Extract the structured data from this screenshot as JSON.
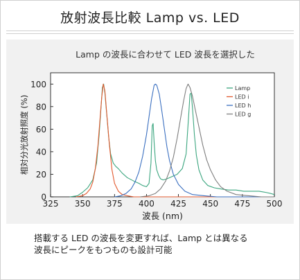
{
  "page": {
    "title": "放射波長比較 Lamp vs. LED",
    "caption_lines": [
      "搭載する LED の波長を変更すれば、Lamp とは異なる",
      "波長にピークをもつものも設計可能"
    ]
  },
  "chart_data": {
    "type": "line",
    "title": "Lamp の波長に合わせて LED 波長を選択した",
    "xlabel": "波長 (nm)",
    "ylabel": "相対分光放射照度 (%)",
    "xlim": [
      325,
      500
    ],
    "ylim": [
      0,
      110
    ],
    "x_ticks": [
      325,
      350,
      375,
      400,
      425,
      450,
      475,
      500
    ],
    "y_ticks": [
      0,
      20,
      40,
      60,
      80,
      100
    ],
    "grid": false,
    "legend_position": "top-right",
    "series": [
      {
        "name": "Lamp",
        "color": "#3aa57e",
        "points": [
          [
            340,
            0
          ],
          [
            346,
            1
          ],
          [
            350,
            4
          ],
          [
            354,
            8
          ],
          [
            358,
            15
          ],
          [
            361,
            30
          ],
          [
            363,
            55
          ],
          [
            364.5,
            80
          ],
          [
            365.5,
            97
          ],
          [
            366.5,
            100
          ],
          [
            367.5,
            92
          ],
          [
            369,
            72
          ],
          [
            370.5,
            52
          ],
          [
            372,
            38
          ],
          [
            374,
            30
          ],
          [
            376,
            27
          ],
          [
            378,
            25
          ],
          [
            381,
            21
          ],
          [
            385,
            17
          ],
          [
            390,
            14
          ],
          [
            394,
            12
          ],
          [
            397,
            10
          ],
          [
            400,
            9
          ],
          [
            402,
            12
          ],
          [
            403.5,
            30
          ],
          [
            404.5,
            63
          ],
          [
            405.2,
            65
          ],
          [
            406,
            48
          ],
          [
            407,
            32
          ],
          [
            408,
            24
          ],
          [
            409.5,
            19
          ],
          [
            411,
            16
          ],
          [
            413,
            15
          ],
          [
            416,
            16
          ],
          [
            420,
            18
          ],
          [
            424,
            20
          ],
          [
            428,
            25
          ],
          [
            431,
            38
          ],
          [
            433,
            72
          ],
          [
            434,
            91
          ],
          [
            435,
            92
          ],
          [
            436,
            78
          ],
          [
            437.5,
            55
          ],
          [
            439,
            37
          ],
          [
            441,
            24
          ],
          [
            444,
            15
          ],
          [
            448,
            10
          ],
          [
            453,
            8
          ],
          [
            458,
            7
          ],
          [
            464,
            6
          ],
          [
            470,
            6
          ],
          [
            476,
            5
          ],
          [
            482,
            5
          ],
          [
            488,
            5
          ],
          [
            493,
            4
          ],
          [
            497,
            3
          ],
          [
            500,
            2
          ]
        ]
      },
      {
        "name": "LED i",
        "color": "#e2592e",
        "points": [
          [
            345,
            0
          ],
          [
            350,
            1
          ],
          [
            353,
            3
          ],
          [
            356,
            7
          ],
          [
            358,
            13
          ],
          [
            360,
            25
          ],
          [
            362,
            45
          ],
          [
            363.5,
            67
          ],
          [
            365,
            88
          ],
          [
            366.2,
            100
          ],
          [
            367.5,
            94
          ],
          [
            369,
            73
          ],
          [
            371,
            46
          ],
          [
            373,
            24
          ],
          [
            375,
            12
          ],
          [
            378,
            5
          ],
          [
            381,
            2
          ],
          [
            385,
            1
          ],
          [
            390,
            0
          ],
          [
            500,
            0
          ]
        ]
      },
      {
        "name": "LED h",
        "color": "#3a6fc0",
        "points": [
          [
            375,
            0
          ],
          [
            380,
            1
          ],
          [
            384,
            3
          ],
          [
            388,
            7
          ],
          [
            391,
            13
          ],
          [
            394,
            22
          ],
          [
            397,
            36
          ],
          [
            400,
            55
          ],
          [
            402,
            71
          ],
          [
            404,
            87
          ],
          [
            406,
            99
          ],
          [
            407,
            100
          ],
          [
            408,
            99
          ],
          [
            410,
            91
          ],
          [
            412,
            76
          ],
          [
            414,
            60
          ],
          [
            416,
            44
          ],
          [
            418,
            32
          ],
          [
            421,
            20
          ],
          [
            425,
            11
          ],
          [
            430,
            5
          ],
          [
            436,
            2
          ],
          [
            445,
            1
          ],
          [
            455,
            0
          ],
          [
            500,
            0
          ]
        ]
      },
      {
        "name": "LED g",
        "color": "#7d7d7d",
        "points": [
          [
            395,
            0
          ],
          [
            402,
            1
          ],
          [
            407,
            3
          ],
          [
            411,
            7
          ],
          [
            415,
            14
          ],
          [
            418,
            23
          ],
          [
            421,
            35
          ],
          [
            424,
            52
          ],
          [
            427,
            72
          ],
          [
            429,
            85
          ],
          [
            431,
            96
          ],
          [
            432.5,
            100
          ],
          [
            434,
            97
          ],
          [
            436,
            89
          ],
          [
            438,
            78
          ],
          [
            441,
            62
          ],
          [
            444,
            46
          ],
          [
            447,
            33
          ],
          [
            450,
            24
          ],
          [
            454,
            15
          ],
          [
            458,
            9
          ],
          [
            463,
            5
          ],
          [
            470,
            2
          ],
          [
            480,
            1
          ],
          [
            490,
            0
          ],
          [
            500,
            0
          ]
        ]
      }
    ]
  }
}
